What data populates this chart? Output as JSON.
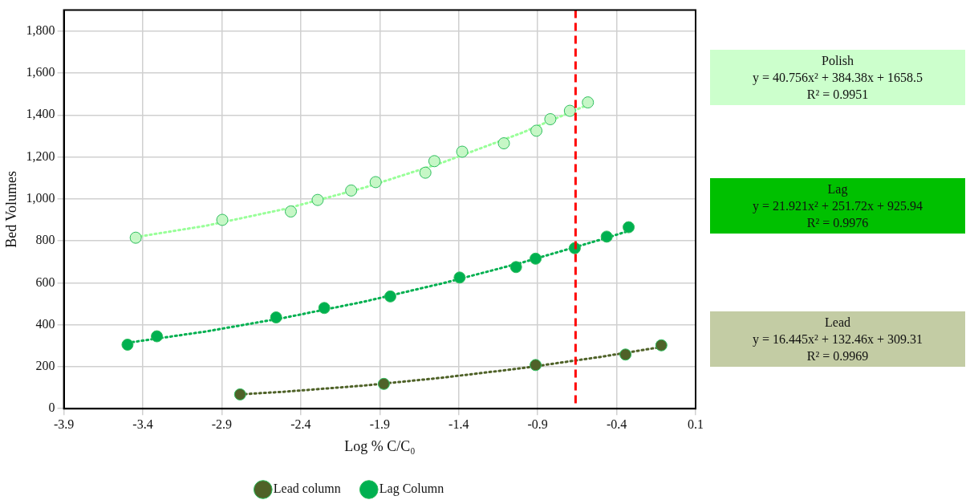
{
  "chart_data": {
    "type": "scatter",
    "xlabel": "Log % C/C₀",
    "ylabel": "Bed Volumes",
    "series": [
      {
        "name": "Lead column",
        "color": "#4f6228",
        "marker": "circle",
        "x": [
          -2.784,
          -1.874,
          -0.913,
          -0.344,
          -0.117
        ],
        "values": [
          68,
          118,
          208,
          258,
          302
        ]
      },
      {
        "name": "Lag Column",
        "color": "#00b050",
        "marker": "circle",
        "x": [
          -3.497,
          -3.311,
          -2.556,
          -2.251,
          -1.833,
          -1.394,
          -1.037,
          -0.913,
          -0.665,
          -0.463,
          -0.324
        ],
        "values": [
          305,
          345,
          435,
          480,
          535,
          625,
          675,
          715,
          765,
          820,
          865
        ]
      },
      {
        "color": "#c6f7c6",
        "marker": "circle",
        "x": [
          -3.445,
          -2.897,
          -2.463,
          -2.293,
          -2.081,
          -1.926,
          -1.611,
          -1.554,
          -1.378,
          -1.114,
          -0.908,
          -0.82,
          -0.696,
          -0.582
        ],
        "values": [
          815,
          900,
          940,
          995,
          1040,
          1080,
          1125,
          1180,
          1225,
          1265,
          1325,
          1380,
          1420,
          1460
        ]
      },
      {
        "type": "line",
        "color": "#99ff99",
        "line_style": "dotted",
        "marker": "none",
        "x": [
          -3.445,
          -3,
          -2.5,
          -2,
          -1.5,
          -1,
          -0.582
        ],
        "values": [
          818,
          872,
          952,
          1053,
          1174,
          1315,
          1449
        ]
      },
      {
        "type": "line",
        "color": "#00b050",
        "line_style": "dotted",
        "marker": "none",
        "x": [
          -3.497,
          -3,
          -2.5,
          -2,
          -1.5,
          -1,
          -0.5,
          -0.324
        ],
        "values": [
          314,
          368,
          434,
          510,
          598,
          696,
          806,
          847
        ]
      },
      {
        "type": "line",
        "color": "#4f6228",
        "line_style": "dotted",
        "marker": "none",
        "x": [
          -2.784,
          -2.5,
          -2,
          -1.5,
          -1,
          -0.5,
          -0.117
        ],
        "values": [
          68,
          81,
          110,
          148,
          193,
          247,
          294
        ]
      }
    ],
    "xlim": [
      -3.9,
      0.1
    ],
    "xticks": [
      -3.9,
      -3.4,
      -2.9,
      -2.4,
      -1.9,
      -1.4,
      -0.9,
      -0.4,
      0.1
    ],
    "ylim": [
      0,
      1900
    ],
    "yticks": [
      0,
      200,
      400,
      600,
      800,
      {
        "value": 1000,
        "label": "1,000"
      },
      {
        "value": 1200,
        "label": "1,200"
      },
      {
        "value": 1400,
        "label": "1,400"
      },
      {
        "value": 1600,
        "label": "1,600"
      },
      {
        "value": 1800,
        "label": "1,800"
      }
    ],
    "grid": true,
    "legend": "bottom",
    "ref_lines": [
      {
        "axis": "x",
        "value": -0.66,
        "color": "#ff0000",
        "line_style": "dashed"
      }
    ],
    "annotations": [
      "Polish\ny = 40.756x² + 384.38x + 1658.5\nR² = 0.9951",
      "Lag\ny = 21.921x² + 251.72x + 925.94\nR² = 0.9976",
      "Lead\ny = 16.445x² + 132.46x + 309.31\nR² = 0.9969"
    ]
  }
}
